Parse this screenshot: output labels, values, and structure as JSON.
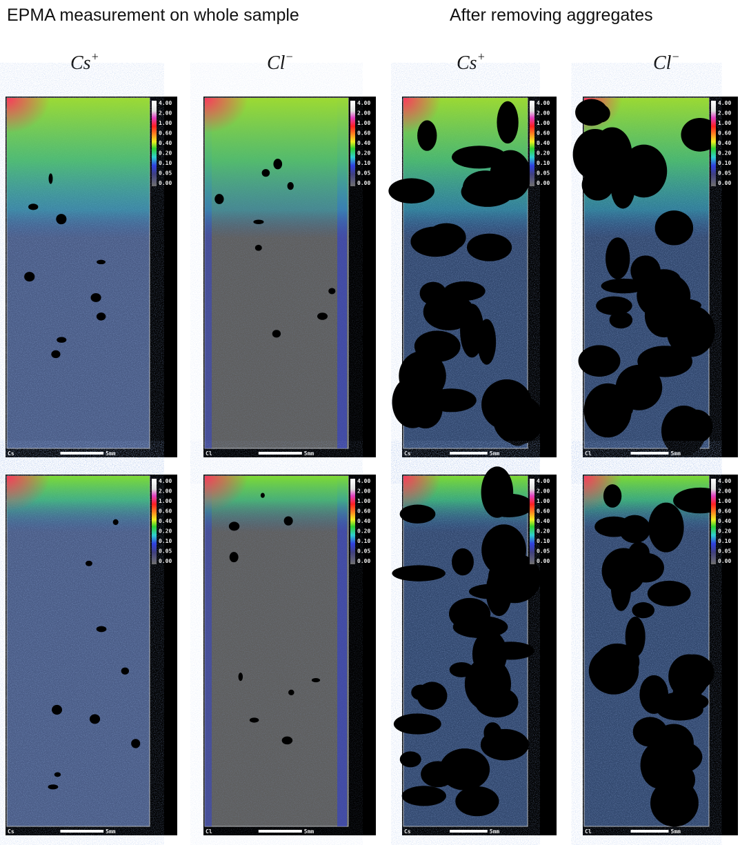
{
  "header": {
    "left": "EPMA measurement on whole sample",
    "right": "After removing aggregates"
  },
  "columns": [
    {
      "ion": "Cs",
      "charge": "+"
    },
    {
      "ion": "Cl",
      "charge": "−"
    },
    {
      "ion": "Cs",
      "charge": "+"
    },
    {
      "ion": "Cl",
      "charge": "−"
    }
  ],
  "color_scale": [
    "4.00",
    "2.00",
    "1.00",
    "0.60",
    "0.40",
    "0.20",
    "0.10",
    "0.05",
    "0.00"
  ],
  "scale_bar": "5mm",
  "panels": [
    {
      "label": "Cs"
    },
    {
      "label": "Cl"
    },
    {
      "label": "Cs"
    },
    {
      "label": "Cl"
    },
    {
      "label": "Cs"
    },
    {
      "label": "Cl"
    },
    {
      "label": "Cs"
    },
    {
      "label": "Cl"
    }
  ]
}
